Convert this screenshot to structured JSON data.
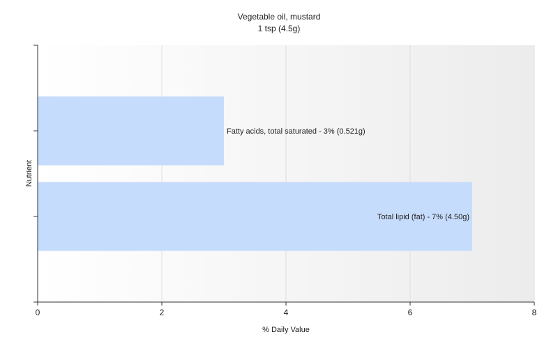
{
  "chart_data": {
    "type": "bar",
    "orientation": "horizontal",
    "title": "Vegetable oil, mustard",
    "subtitle": "1 tsp (4.5g)",
    "xlabel": "% Daily Value",
    "ylabel": "Nutrient",
    "xlim": [
      0,
      8
    ],
    "xticks": [
      0,
      2,
      4,
      6,
      8
    ],
    "grid": true,
    "legend": "none",
    "bar_color": "#c6dcfc",
    "categories": [
      "Fatty acids, total saturated",
      "Total lipid (fat)"
    ],
    "values": [
      3,
      7
    ],
    "data_labels": [
      "Fatty acids, total saturated - 3% (0.521g)",
      "Total lipid (fat) - 7% (4.50g)"
    ]
  }
}
